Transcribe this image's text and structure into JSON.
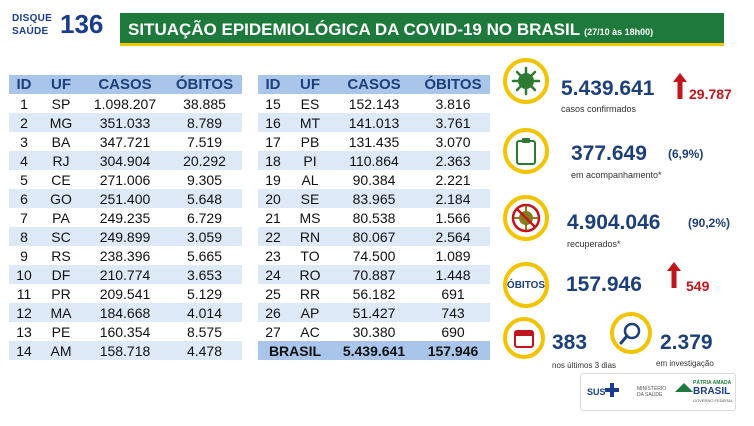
{
  "header": {
    "logo_line1": "DISQUE",
    "logo_line2": "SAÚDE",
    "logo_number": "136",
    "title": "SITUAÇÃO EPIDEMIOLÓGICA DA COVID-19 NO BRASIL",
    "date": "(27/10 às 18h00)"
  },
  "table": {
    "columns": [
      "ID",
      "UF",
      "CASOS",
      "ÓBITOS"
    ],
    "left_rows": [
      [
        "1",
        "SP",
        "1.098.207",
        "38.885"
      ],
      [
        "2",
        "MG",
        "351.033",
        "8.789"
      ],
      [
        "3",
        "BA",
        "347.721",
        "7.519"
      ],
      [
        "4",
        "RJ",
        "304.904",
        "20.292"
      ],
      [
        "5",
        "CE",
        "271.006",
        "9.305"
      ],
      [
        "6",
        "GO",
        "251.400",
        "5.648"
      ],
      [
        "7",
        "PA",
        "249.235",
        "6.729"
      ],
      [
        "8",
        "SC",
        "249.899",
        "3.059"
      ],
      [
        "9",
        "RS",
        "238.396",
        "5.665"
      ],
      [
        "10",
        "DF",
        "210.774",
        "3.653"
      ],
      [
        "11",
        "PR",
        "209.541",
        "5.129"
      ],
      [
        "12",
        "MA",
        "184.668",
        "4.014"
      ],
      [
        "13",
        "PE",
        "160.354",
        "8.575"
      ],
      [
        "14",
        "AM",
        "158.718",
        "4.478"
      ]
    ],
    "right_rows": [
      [
        "15",
        "ES",
        "152.143",
        "3.816"
      ],
      [
        "16",
        "MT",
        "141.013",
        "3.761"
      ],
      [
        "17",
        "PB",
        "131.435",
        "3.070"
      ],
      [
        "18",
        "PI",
        "110.864",
        "2.363"
      ],
      [
        "19",
        "AL",
        "90.384",
        "2.221"
      ],
      [
        "20",
        "SE",
        "83.965",
        "2.184"
      ],
      [
        "21",
        "MS",
        "80.538",
        "1.566"
      ],
      [
        "22",
        "RN",
        "80.067",
        "2.564"
      ],
      [
        "23",
        "TO",
        "74.500",
        "1.089"
      ],
      [
        "24",
        "RO",
        "70.887",
        "1.448"
      ],
      [
        "25",
        "RR",
        "56.182",
        "691"
      ],
      [
        "26",
        "AP",
        "51.427",
        "743"
      ],
      [
        "27",
        "AC",
        "30.380",
        "690"
      ]
    ],
    "total_label": "BRASIL",
    "total_cases": "5.439.641",
    "total_deaths": "157.946"
  },
  "stats": {
    "confirmed": "5.439.641",
    "confirmed_new": "29.787",
    "confirmed_label": "casos confirmados",
    "monitoring": "377.649",
    "monitoring_pct": "(6,9%)",
    "monitoring_label": "em acompanhamento*",
    "recovered": "4.904.046",
    "recovered_pct": "(90,2%)",
    "recovered_label": "recuperados*",
    "deaths_icon_label": "ÓBITOS",
    "deaths": "157.946",
    "deaths_new": "549",
    "recent": "383",
    "recent_label": "nos últimos 3 dias",
    "recent_icon": "3",
    "investigation": "2.379",
    "investigation_label": "em investigação"
  },
  "footer": {
    "sus": "SUS",
    "ministry": "MINISTÉRIO DA SAÚDE",
    "patria": "PÁTRIA AMADA",
    "brasil": "BRASIL",
    "gov": "GOVERNO FEDERAL"
  },
  "colors": {
    "green": "#1e7a3c",
    "yellow": "#f2c300",
    "navy": "#1d3f7a",
    "red": "#c0161d"
  },
  "icons": [
    "virus-icon",
    "clipboard-icon",
    "recovered-virus-icon",
    "calendar-icon",
    "magnifier-icon",
    "arrow-up-icon"
  ]
}
